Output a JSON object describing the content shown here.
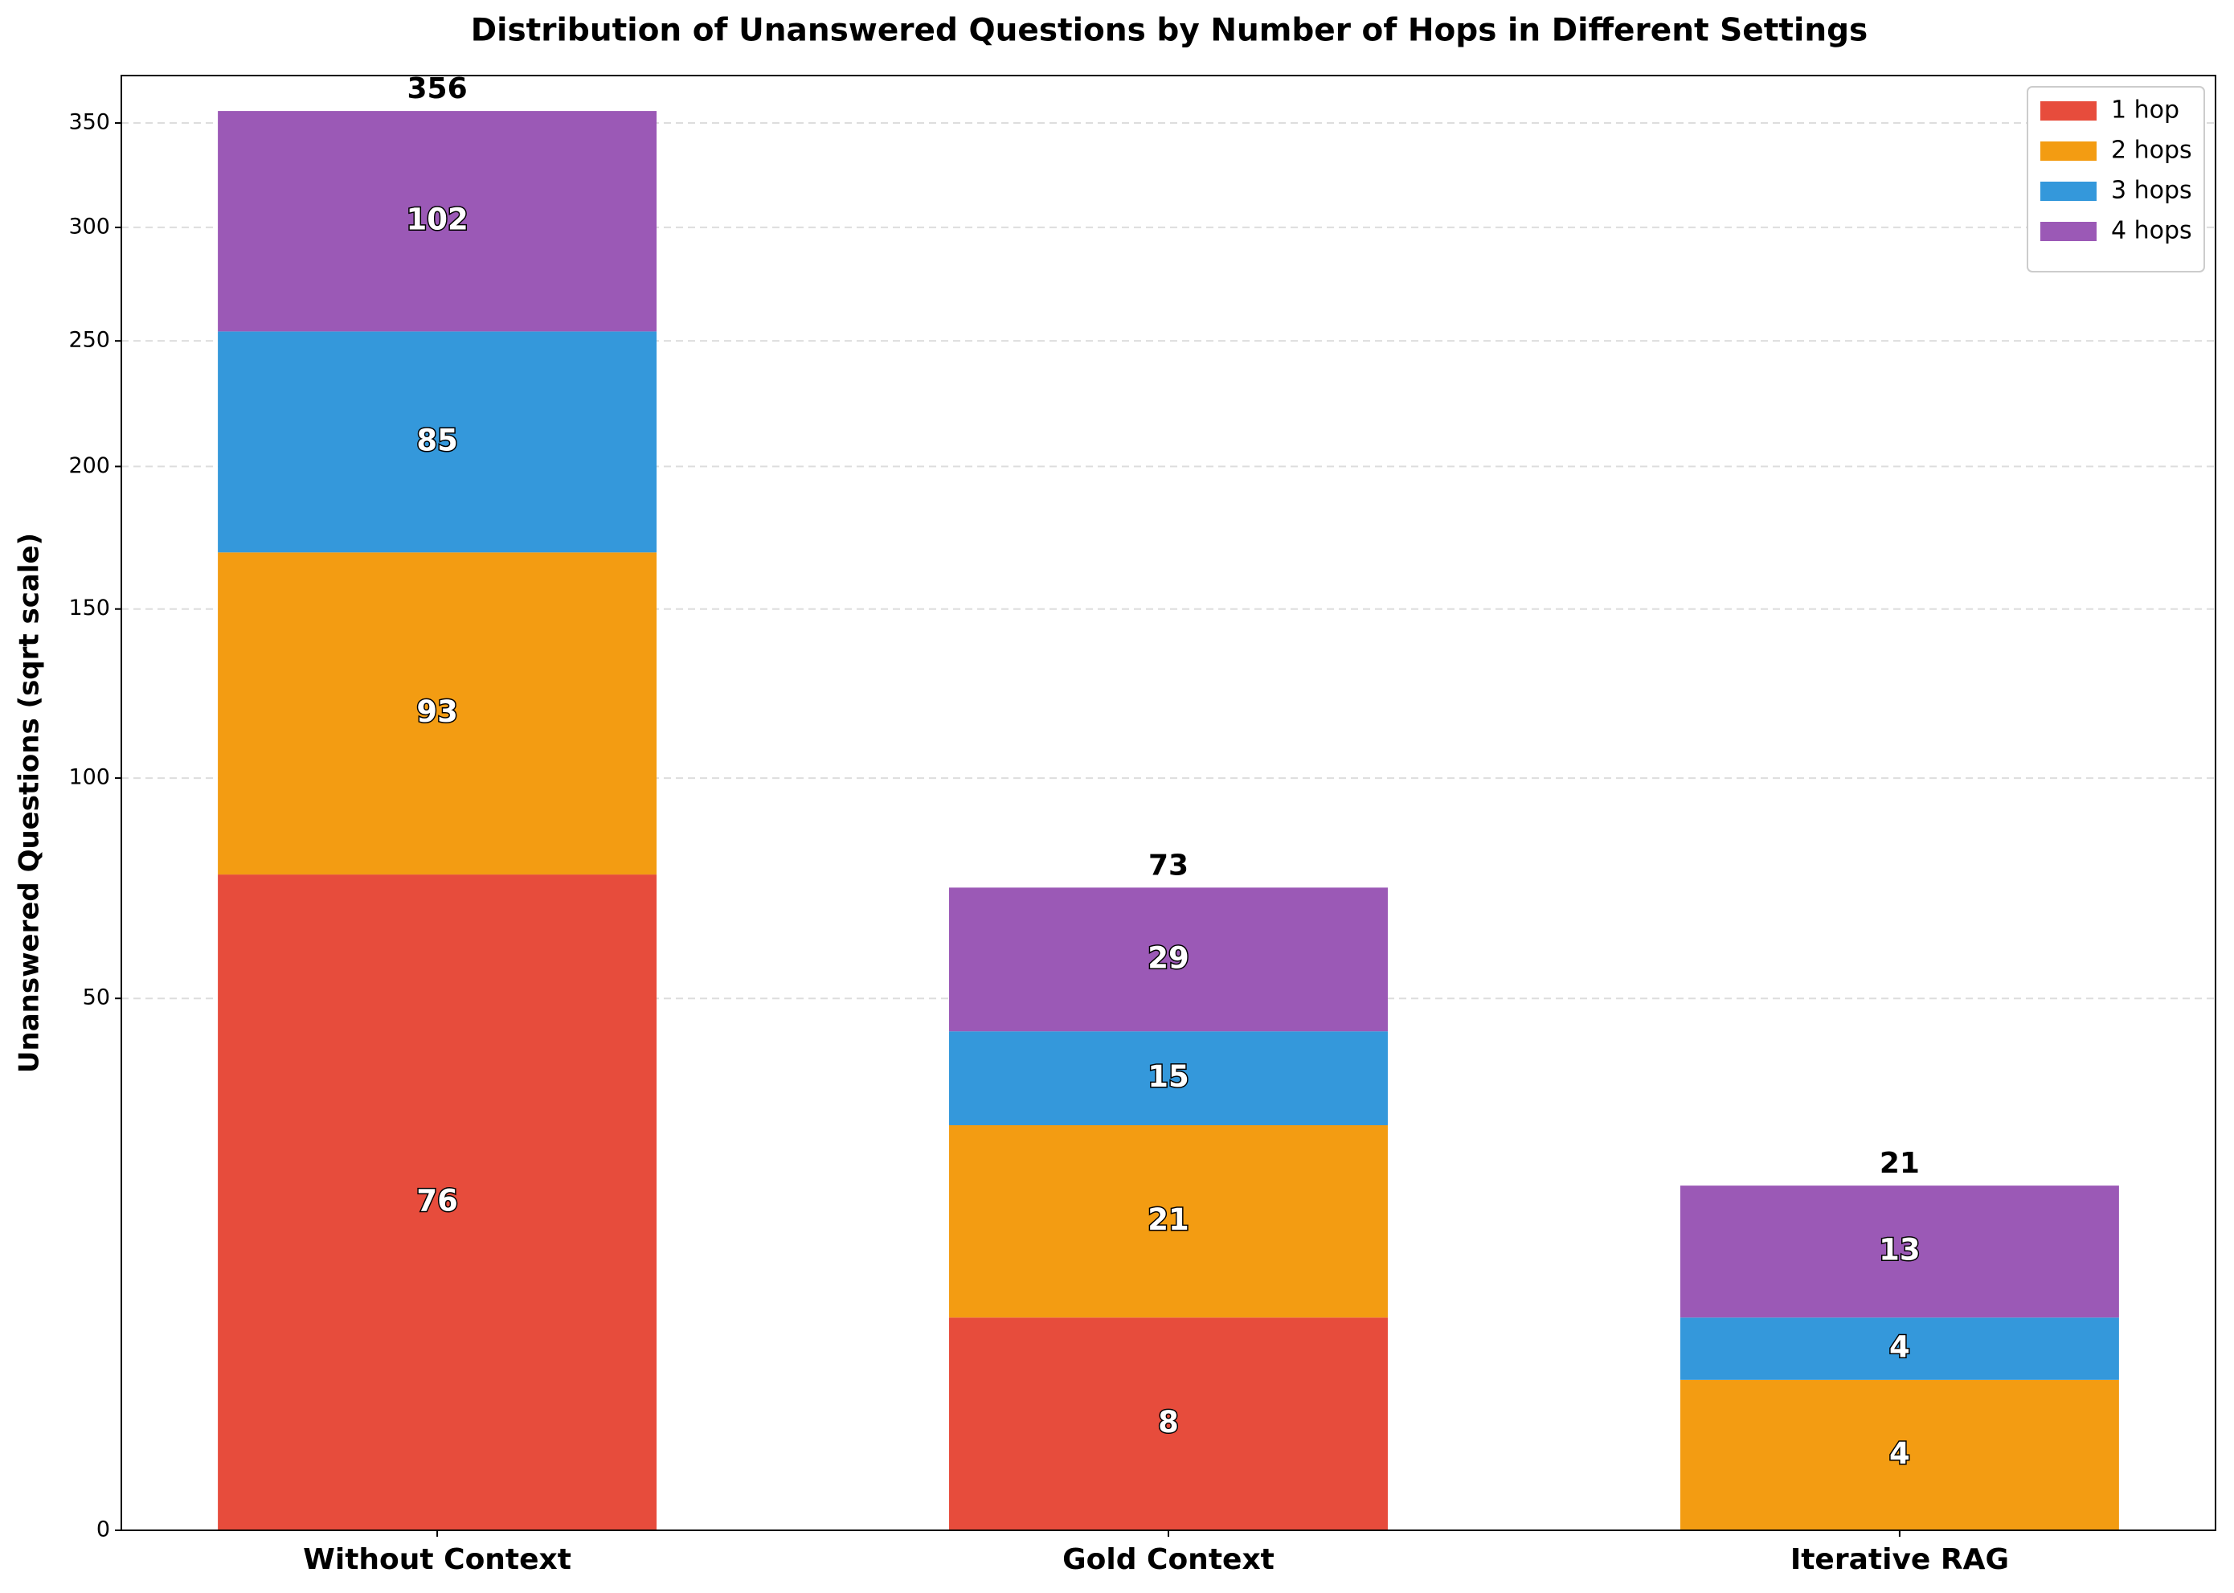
{
  "chart_data": {
    "type": "stacked_bar",
    "title": "Distribution of Unanswered Questions by Number of Hops in Different Settings",
    "ylabel": "Unanswered Questions (sqrt scale)",
    "yscale": "sqrt",
    "categories": [
      "Without Context",
      "Gold Context",
      "Iterative RAG"
    ],
    "series": [
      {
        "name": "1 hop",
        "color": "#e74c3c",
        "values": [
          76,
          8,
          0
        ]
      },
      {
        "name": "2 hops",
        "color": "#f39c12",
        "values": [
          93,
          21,
          4
        ]
      },
      {
        "name": "3 hops",
        "color": "#3498db",
        "values": [
          85,
          15,
          4
        ]
      },
      {
        "name": "4 hops",
        "color": "#9b59b6",
        "values": [
          102,
          29,
          13
        ]
      }
    ],
    "totals": [
      356,
      73,
      21
    ],
    "ylim": [
      0,
      374
    ],
    "yticks": [
      0,
      50,
      100,
      150,
      200,
      250,
      300,
      350
    ],
    "grid": true,
    "legend": "upper right"
  }
}
